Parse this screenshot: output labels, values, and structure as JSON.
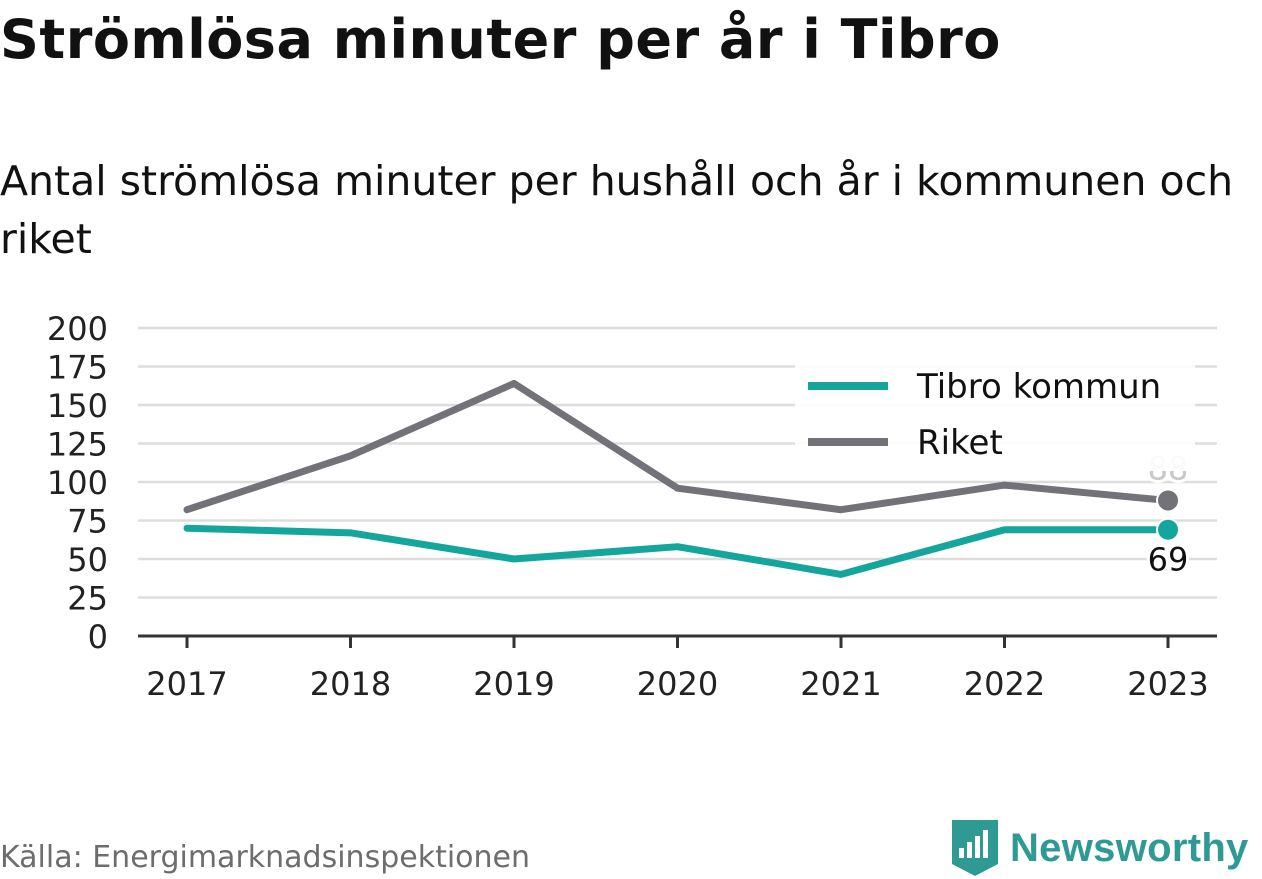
{
  "title": "Strömlösa minuter per år i Tibro",
  "subtitle": "Antal strömlösa minuter per hushåll och år i kommunen och riket",
  "source": "Källa: Energimarknadsinspektionen",
  "brand": {
    "name": "Newsworthy",
    "icon": "newsworthy-logo-icon",
    "color": "#2e9a93"
  },
  "chart_data": {
    "type": "line",
    "x": [
      "2017",
      "2018",
      "2019",
      "2020",
      "2021",
      "2022",
      "2023"
    ],
    "ylim": [
      0,
      200
    ],
    "yticks": [
      "0",
      "25",
      "50",
      "75",
      "100",
      "125",
      "150",
      "175",
      "200"
    ],
    "grid": true,
    "legend_position": "top-right",
    "series": [
      {
        "name": "Tibro kommun",
        "color": "#14a69c",
        "values": [
          70,
          67,
          50,
          58,
          40,
          69,
          69
        ],
        "end_label": "69"
      },
      {
        "name": "Riket",
        "color": "#737278",
        "values": [
          82,
          117,
          164,
          96,
          82,
          98,
          88
        ],
        "end_label": "88"
      }
    ]
  }
}
